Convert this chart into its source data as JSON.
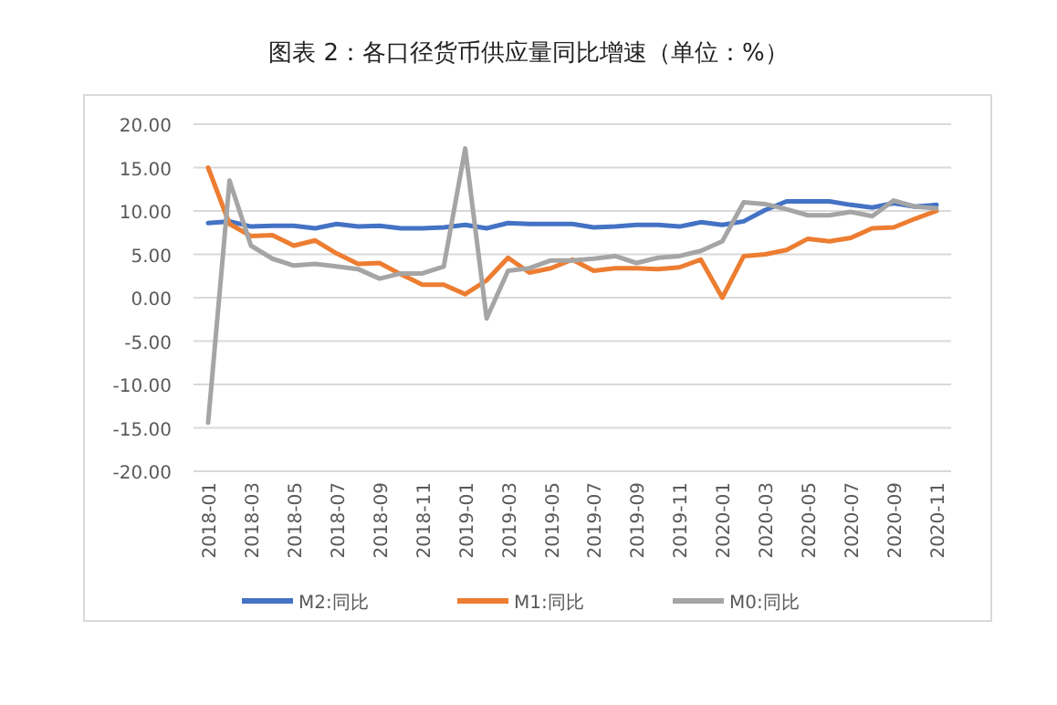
{
  "chart_data": {
    "type": "line",
    "title": "图表 2：各口径货币供应量同比增速（单位：%）",
    "categories": [
      "2018-01",
      null,
      "2018-03",
      null,
      "2018-05",
      null,
      "2018-07",
      null,
      "2018-09",
      null,
      "2018-11",
      null,
      "2019-01",
      null,
      "2019-03",
      null,
      "2019-05",
      null,
      "2019-07",
      null,
      "2019-09",
      null,
      "2019-11",
      null,
      "2020-01",
      null,
      "2020-03",
      null,
      "2020-05",
      null,
      "2020-07",
      null,
      "2020-09",
      null,
      "2020-11"
    ],
    "series": [
      {
        "name": "M2:同比",
        "color": "#4472c4",
        "values": [
          8.6,
          8.8,
          8.2,
          8.3,
          8.3,
          8.0,
          8.5,
          8.2,
          8.3,
          8.0,
          8.0,
          8.1,
          8.4,
          8.0,
          8.6,
          8.5,
          8.5,
          8.5,
          8.1,
          8.2,
          8.4,
          8.4,
          8.2,
          8.7,
          8.4,
          8.8,
          10.1,
          11.1,
          11.1,
          11.1,
          10.7,
          10.4,
          10.9,
          10.5,
          10.7
        ]
      },
      {
        "name": "M1:同比",
        "color": "#ed7d31",
        "values": [
          15.0,
          8.5,
          7.1,
          7.2,
          6.0,
          6.6,
          5.1,
          3.9,
          4.0,
          2.7,
          1.5,
          1.5,
          0.4,
          2.0,
          4.6,
          2.9,
          3.4,
          4.4,
          3.1,
          3.4,
          3.4,
          3.3,
          3.5,
          4.4,
          0.0,
          4.8,
          5.0,
          5.5,
          6.8,
          6.5,
          6.9,
          8.0,
          8.1,
          9.1,
          10.0
        ]
      },
      {
        "name": "M0:同比",
        "color": "#a5a5a5",
        "values": [
          -14.4,
          13.5,
          6.0,
          4.5,
          3.7,
          3.9,
          3.6,
          3.3,
          2.2,
          2.8,
          2.8,
          3.6,
          17.2,
          -2.4,
          3.1,
          3.4,
          4.3,
          4.3,
          4.5,
          4.8,
          4.0,
          4.6,
          4.8,
          5.4,
          6.5,
          11.0,
          10.8,
          10.2,
          9.5,
          9.5,
          9.9,
          9.4,
          11.2,
          10.5,
          10.3
        ]
      }
    ],
    "ylim": [
      -20,
      20
    ],
    "yticks": [
      {
        "value": -20,
        "label": "-20.00"
      },
      {
        "value": -15,
        "label": "-15.00"
      },
      {
        "value": -10,
        "label": "-10.00"
      },
      {
        "value": -5,
        "label": "-5.00"
      },
      {
        "value": 0,
        "label": "0.00"
      },
      {
        "value": 5,
        "label": "5.00"
      },
      {
        "value": 10,
        "label": "10.00"
      },
      {
        "value": 15,
        "label": "15.00"
      },
      {
        "value": 20,
        "label": "20.00"
      }
    ],
    "grid": "y",
    "legend": "bottom",
    "marker": "none",
    "line_style": "solid"
  }
}
